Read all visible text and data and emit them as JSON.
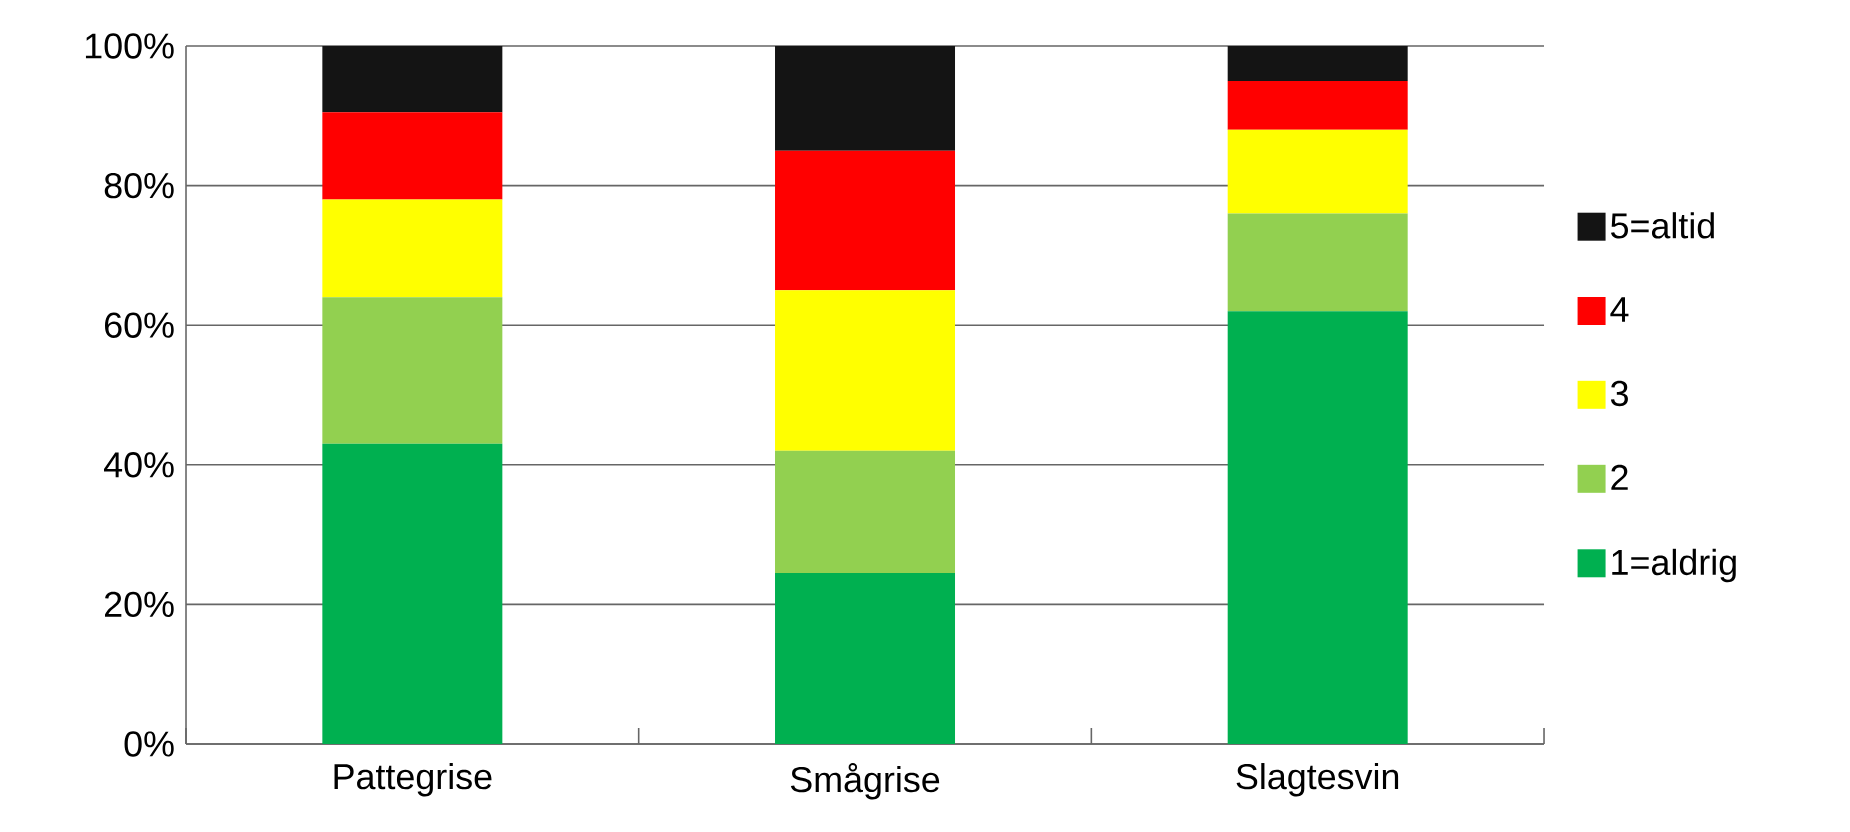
{
  "chart_data": {
    "type": "bar",
    "stacked": true,
    "categories": [
      "Pattegrise",
      "Smågrise",
      "Slagtesvin"
    ],
    "series": [
      {
        "name": "1=aldrig",
        "color": "#00b050",
        "values": [
          43,
          24.5,
          62
        ]
      },
      {
        "name": "2",
        "color": "#92d050",
        "values": [
          21,
          17.5,
          14
        ]
      },
      {
        "name": "3",
        "color": "#ffff00",
        "values": [
          14,
          23,
          12
        ]
      },
      {
        "name": "4",
        "color": "#ff0000",
        "values": [
          12.5,
          20,
          7
        ]
      },
      {
        "name": "5=altid",
        "color": "#141414",
        "values": [
          9.5,
          15,
          5
        ]
      }
    ],
    "ylim": [
      0,
      100
    ],
    "yticks": [
      {
        "value": 0,
        "label": "0%"
      },
      {
        "value": 20,
        "label": "20%"
      },
      {
        "value": 40,
        "label": "40%"
      },
      {
        "value": 60,
        "label": "60%"
      },
      {
        "value": 80,
        "label": "80%"
      },
      {
        "value": 100,
        "label": "100%"
      }
    ],
    "grid": "y",
    "legend": "right"
  }
}
